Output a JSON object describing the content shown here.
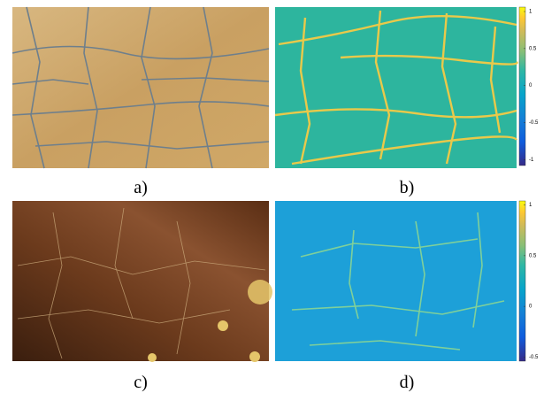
{
  "panels": [
    {
      "caption": "a)"
    },
    {
      "caption": "b)",
      "colorbar": {
        "lim": [
          -1.08,
          1.06
        ],
        "ticks": [
          1,
          0.5,
          0,
          -0.5,
          -1
        ]
      }
    },
    {
      "caption": "c)"
    },
    {
      "caption": "d)",
      "colorbar": {
        "lim": [
          -0.54,
          1.04
        ],
        "ticks": [
          1,
          0.5,
          0,
          -0.5
        ]
      }
    }
  ]
}
